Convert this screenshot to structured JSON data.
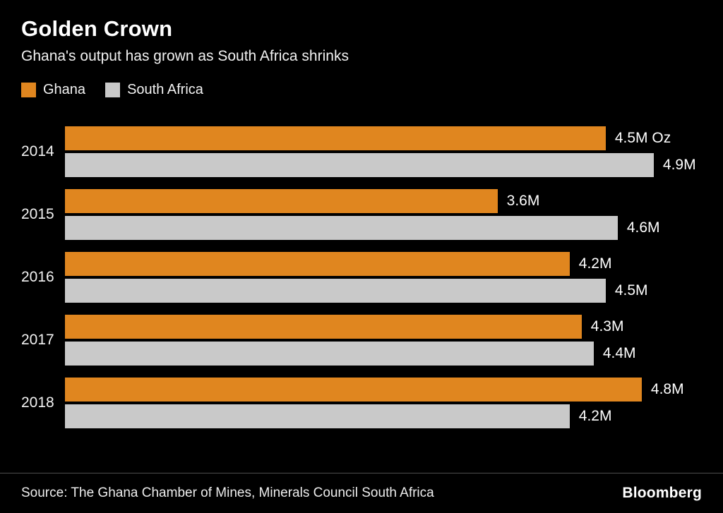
{
  "header": {
    "title": "Golden Crown",
    "subtitle": "Ghana's output has grown as South Africa shrinks"
  },
  "legend": [
    {
      "label": "Ghana",
      "color": "#E0861F"
    },
    {
      "label": "South Africa",
      "color": "#C9C9C9"
    }
  ],
  "chart_data": {
    "type": "bar",
    "orientation": "horizontal",
    "title": "Golden Crown",
    "subtitle": "Ghana's output has grown as South Africa shrinks",
    "categories": [
      "2014",
      "2015",
      "2016",
      "2017",
      "2018"
    ],
    "series": [
      {
        "name": "Ghana",
        "color": "#E0861F",
        "values": [
          4.5,
          3.6,
          4.2,
          4.3,
          4.8
        ],
        "labels": [
          "4.5M Oz",
          "3.6M",
          "4.2M",
          "4.3M",
          "4.8M"
        ]
      },
      {
        "name": "South Africa",
        "color": "#C9C9C9",
        "values": [
          4.9,
          4.6,
          4.5,
          4.4,
          4.2
        ],
        "labels": [
          "4.9M",
          "4.6M",
          "4.5M",
          "4.4M",
          "4.2M"
        ]
      }
    ],
    "unit": "M Oz",
    "xlim": [
      0,
      5.3
    ],
    "grid": false,
    "legend_position": "top-left"
  },
  "footer": {
    "source": "Source: The Ghana Chamber of Mines, Minerals Council South Africa",
    "brand": "Bloomberg"
  }
}
